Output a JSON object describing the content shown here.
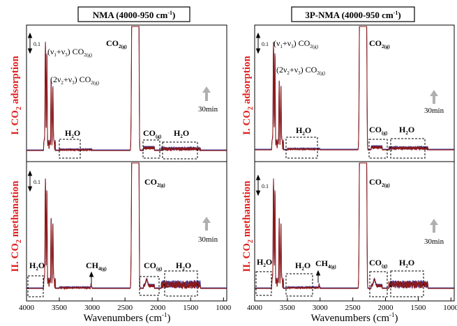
{
  "figure": {
    "x_axis_label": "Wavenumbers (cm",
    "x_axis_label_sup": "-1",
    "x_axis_label_end": ")",
    "time_arrow_label": "30min",
    "scale_bar_label": "0.1",
    "colors": {
      "trace": "#8b1a1a",
      "trace_alt": "#3a3aa0",
      "section_label": "#e02020",
      "axis": "#000000",
      "arrow": "#b0b0b0"
    }
  },
  "rows": [
    {
      "label_prefix": "I. CO",
      "label_sub": "2",
      "label_suffix": " adsorption"
    },
    {
      "label_prefix": "II. CO",
      "label_sub": "2",
      "label_suffix": " methanation"
    }
  ],
  "panel_titles": [
    {
      "text": "NMA (4000-950 cm",
      "sup": "-1",
      "end": ")"
    },
    {
      "text": "3P-NMA (4000-950 cm",
      "sup": "-1",
      "end": ")"
    }
  ],
  "annotations": {
    "co2_gas": {
      "main": "CO",
      "sub": "2(g)"
    },
    "v1v3": {
      "main": "(ν",
      "s1": "1",
      "mid": "+ν",
      "s2": "3",
      "end": ") CO",
      "sub": "2(g)"
    },
    "v2v3": {
      "main": "(2ν",
      "s1": "2",
      "mid": "+ν",
      "s2": "3",
      "end": ") CO",
      "sub": "2(g)"
    },
    "h2o": {
      "main": "H",
      "sub": "2",
      "end": "O"
    },
    "co_gas": {
      "main": "CO",
      "sub": "(g)"
    },
    "ch4_gas": {
      "main": "CH",
      "sub": "4(g)"
    }
  },
  "chart_data": {
    "type": "line",
    "xlabel": "Wavenumbers (cm-1)",
    "xlim": [
      4000,
      950
    ],
    "x_reversed": true,
    "x_ticks": [
      4000,
      3500,
      3000,
      2500,
      2000,
      1500,
      1000
    ],
    "y_ticks_shown": false,
    "panels": [
      {
        "title": "NMA (4000-950 cm-1)",
        "row": "I. CO2 adsorption",
        "annotations": [
          "0.1",
          "CO2(g)",
          "(ν1+ν3) CO2(g)",
          "(2ν2+ν3) CO2(g)",
          "H2O",
          "CO(g)",
          "H2O",
          "30min"
        ]
      },
      {
        "title": "3P-NMA (4000-950 cm-1)",
        "row": "I. CO2 adsorption",
        "annotations": [
          "0.1",
          "(ν1+ν3) CO2(g)",
          "(2ν2+ν3) CO2(g)",
          "CO2(g)",
          "H2O",
          "CO(g)",
          "H2O",
          "30min"
        ]
      },
      {
        "title": "NMA (4000-950 cm-1)",
        "row": "II. CO2 methanation",
        "annotations": [
          "0.1",
          "CO2(g)",
          "H2O",
          "CH4(g)",
          "CO(g)",
          "H2O",
          "30min"
        ]
      },
      {
        "title": "3P-NMA (4000-950 cm-1)",
        "row": "II. CO2 methanation",
        "annotations": [
          "0.1",
          "CO2(g)",
          "H2O",
          "H2O",
          "CH4(g)",
          "CO(g)",
          "H2O",
          "30min"
        ]
      }
    ]
  }
}
